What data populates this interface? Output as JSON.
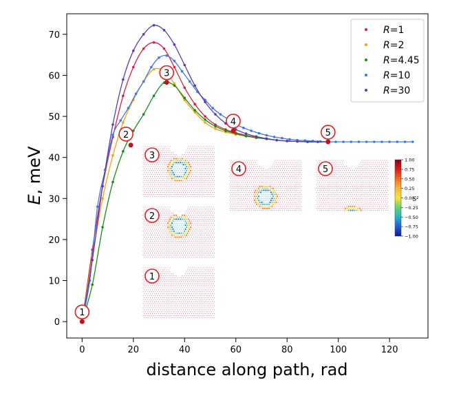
{
  "chart_data": {
    "type": "line",
    "xlabel": "distance along path, rad",
    "ylabel": "E, meV",
    "xlim": [
      -6,
      135
    ],
    "ylim": [
      -4,
      75
    ],
    "xticks": [
      0,
      20,
      40,
      60,
      80,
      100,
      120
    ],
    "yticks": [
      0,
      10,
      20,
      30,
      40,
      50,
      60,
      70
    ],
    "xtick_labels": [
      "0",
      "20",
      "40",
      "60",
      "80",
      "100",
      "120"
    ],
    "ytick_labels": [
      "0",
      "10",
      "20",
      "30",
      "40",
      "50",
      "60",
      "70"
    ],
    "grid": false,
    "legend_position": "top-right",
    "series": [
      {
        "name": "R=1",
        "r_value": "1",
        "color": "#d62045",
        "x": [
          0,
          4,
          8,
          12,
          16,
          20,
          24,
          28,
          32,
          36,
          40,
          44,
          48,
          52,
          56,
          60,
          64,
          68,
          72,
          76,
          80,
          84,
          88,
          92,
          96
        ],
        "y": [
          0,
          17.5,
          33,
          45,
          55,
          62,
          66.5,
          68,
          66.5,
          62,
          57,
          53,
          50,
          48,
          46.8,
          46,
          45.4,
          44.9,
          44.5,
          44.2,
          44,
          43.9,
          43.8,
          43.8,
          43.8
        ]
      },
      {
        "name": "R=2",
        "r_value": "2",
        "color": "#f2a20e",
        "x": [
          0,
          4,
          8,
          12,
          16,
          20,
          24,
          28,
          32,
          36,
          40,
          44,
          48,
          52,
          56,
          60,
          64,
          68,
          72,
          76,
          80,
          84,
          88,
          92,
          96
        ],
        "y": [
          0,
          16,
          30,
          40.5,
          48.5,
          54,
          58.5,
          61.5,
          61,
          58,
          54,
          51,
          48.5,
          47,
          46.2,
          45.6,
          45.2,
          44.8,
          44.5,
          44.2,
          44,
          43.9,
          43.8,
          43.8,
          43.8
        ]
      },
      {
        "name": "R=4.45",
        "r_value": "4.45",
        "color": "#1a8a1a",
        "x": [
          0,
          4,
          8,
          12,
          16,
          20,
          24,
          28,
          32,
          36,
          40,
          44,
          48,
          52,
          56,
          60,
          64,
          68,
          72,
          76,
          80,
          84,
          88,
          92,
          96
        ],
        "y": [
          0,
          9,
          23,
          34,
          41.5,
          46.5,
          50.5,
          55,
          58.2,
          57.5,
          54.5,
          51.5,
          49.2,
          47.6,
          46.5,
          45.8,
          45.2,
          44.8,
          44.5,
          44.2,
          44,
          43.9,
          43.8,
          43.8,
          43.8
        ]
      },
      {
        "name": "R=10",
        "r_value": "10",
        "color": "#3b78e7",
        "x": [
          0,
          3,
          6,
          9,
          12,
          15,
          18,
          21,
          24,
          27,
          30,
          33,
          36,
          39,
          42,
          45,
          48,
          51,
          54,
          57,
          60,
          63,
          66,
          69,
          72,
          75,
          78,
          81,
          84,
          87,
          90,
          93,
          96,
          99,
          102,
          105,
          108,
          111,
          114,
          117,
          120,
          123,
          126,
          129
        ],
        "y": [
          0,
          10,
          28,
          37,
          45.5,
          49,
          52,
          55.5,
          58.5,
          62,
          64.3,
          64.8,
          63.5,
          61,
          58.5,
          56,
          54,
          52,
          50.5,
          49.3,
          48.1,
          47.2,
          46.5,
          45.9,
          45.4,
          45,
          44.7,
          44.4,
          44.2,
          44.1,
          44,
          43.9,
          43.8,
          43.8,
          43.8,
          43.8,
          43.8,
          43.8,
          43.8,
          43.8,
          43.8,
          43.8,
          43.8,
          43.8
        ]
      },
      {
        "name": "R=30",
        "r_value": "30",
        "color": "#5a3bb3",
        "x": [
          0,
          4,
          8,
          12,
          16,
          20,
          24,
          28,
          32,
          36,
          40,
          44,
          48,
          52,
          56,
          60,
          64,
          68,
          72,
          76,
          80,
          84,
          88,
          92,
          96
        ],
        "y": [
          0,
          15,
          33,
          48,
          59,
          66,
          70,
          72.2,
          71,
          67.5,
          62.5,
          57.5,
          53.5,
          50.5,
          48.3,
          46.8,
          45.8,
          45.1,
          44.6,
          44.2,
          44,
          43.9,
          43.8,
          43.8,
          43.8
        ]
      }
    ],
    "markers": [
      {
        "label": "1",
        "x": 0,
        "y": 0
      },
      {
        "label": "2",
        "x": 19,
        "y": 43
      },
      {
        "label": "3",
        "x": 33,
        "y": 58.3
      },
      {
        "label": "4",
        "x": 59,
        "y": 46.5
      },
      {
        "label": "5",
        "x": 96,
        "y": 43.8
      }
    ],
    "insets": [
      {
        "label": "3",
        "hole_radius": 0.2,
        "ring_radius": 0.2
      },
      {
        "label": "2",
        "hole_radius": 0.2,
        "ring_radius": 0.2
      },
      {
        "label": "1",
        "hole_radius": 0.2
      },
      {
        "label": "4",
        "hole_radius": 0.2,
        "ring_radius": 0.2
      },
      {
        "label": "5",
        "hole_radius": 0.2,
        "ring_radius": 0.2
      }
    ],
    "colorbar": {
      "label": "S^z",
      "ticks": [
        "1.00",
        "0.75",
        "0.50",
        "0.25",
        "0.00",
        "−0.25",
        "−0.50",
        "−0.75",
        "−1.00"
      ]
    }
  }
}
